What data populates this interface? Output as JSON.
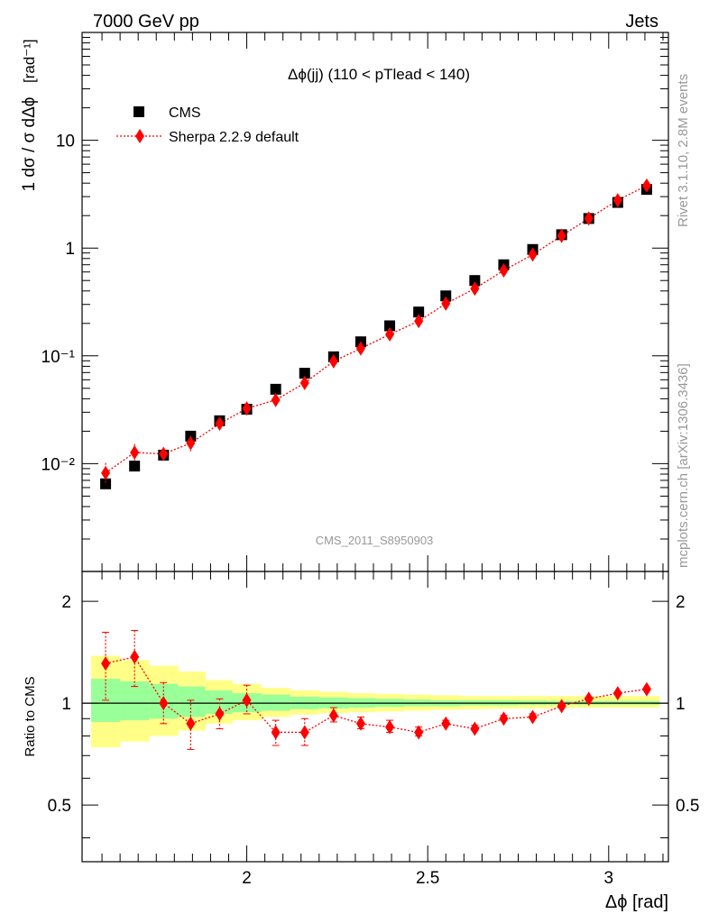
{
  "header": {
    "energy_label": "7000 GeV pp",
    "process_label": "Jets"
  },
  "side_labels": {
    "rivet": "Rivet 3.1.10,  2.8M events",
    "mcplots": "mcplots.cern.ch [arXiv:1306.3436]"
  },
  "chart_data": [
    {
      "type": "scatter",
      "title": "Δϕ(jj) (110 < pTlead <  140)",
      "watermark": "CMS_2011_S8950903",
      "xlabel": "Δϕ [rad]",
      "ylabel_main": "1 dσ / σ dΔϕ",
      "ylabel_unit": "[rad⁻¹]",
      "yscale": "log",
      "xlim": [
        1.545,
        3.165
      ],
      "ylim": [
        0.001,
        100
      ],
      "ytick_labels": [
        "10⁻²",
        "10⁻¹",
        "1",
        "10"
      ],
      "ytick_values": [
        0.01,
        0.1,
        1,
        10
      ],
      "legend_placement": "top-left",
      "x": [
        1.61,
        1.69,
        1.77,
        1.845,
        1.925,
        2.0,
        2.08,
        2.16,
        2.24,
        2.315,
        2.395,
        2.475,
        2.55,
        2.63,
        2.71,
        2.79,
        2.87,
        2.945,
        3.025,
        3.105
      ],
      "series": [
        {
          "name": "CMS",
          "color": "#000000",
          "marker": "square",
          "values": [
            0.0065,
            0.0095,
            0.012,
            0.018,
            0.025,
            0.032,
            0.049,
            0.069,
            0.098,
            0.135,
            0.19,
            0.255,
            0.36,
            0.5,
            0.7,
            0.97,
            1.33,
            1.88,
            2.65,
            3.5
          ]
        },
        {
          "name": "Sherpa 2.2.9 default",
          "color": "#ff0000",
          "marker": "diamond",
          "line": "dotted",
          "values": [
            0.0082,
            0.0127,
            0.0123,
            0.0155,
            0.0235,
            0.0325,
            0.039,
            0.056,
            0.089,
            0.117,
            0.158,
            0.21,
            0.305,
            0.42,
            0.62,
            0.87,
            1.3,
            1.88,
            2.78,
            3.8
          ]
        }
      ]
    },
    {
      "type": "scatter",
      "ylabel": "Ratio to CMS",
      "xlabel": "Δϕ [rad]",
      "yscale": "log",
      "xlim": [
        1.545,
        3.165
      ],
      "ylim": [
        0.34,
        2.45
      ],
      "ytick_labels": [
        "0.5",
        "1",
        "2"
      ],
      "ytick_values": [
        0.5,
        1,
        2
      ],
      "xtick_labels": [
        "2",
        "2.5",
        "3"
      ],
      "xtick_values": [
        2,
        2.5,
        3
      ],
      "x": [
        1.61,
        1.69,
        1.77,
        1.845,
        1.925,
        2.0,
        2.08,
        2.16,
        2.24,
        2.315,
        2.395,
        2.475,
        2.55,
        2.63,
        2.71,
        2.79,
        2.87,
        2.945,
        3.025,
        3.105
      ],
      "ratio": [
        1.31,
        1.37,
        1.0,
        0.87,
        0.93,
        1.02,
        0.82,
        0.82,
        0.92,
        0.87,
        0.85,
        0.82,
        0.87,
        0.84,
        0.9,
        0.91,
        0.98,
        1.03,
        1.07,
        1.1
      ],
      "ratio_err_low": [
        1.02,
        1.12,
        0.87,
        0.73,
        0.84,
        0.93,
        0.75,
        0.75,
        0.88,
        0.84,
        0.82,
        0.8,
        0.86,
        0.83,
        0.89,
        0.9,
        0.97,
        1.02,
        1.06,
        1.09
      ],
      "ratio_err_high": [
        1.62,
        1.64,
        1.15,
        1.02,
        1.03,
        1.13,
        0.89,
        0.9,
        0.97,
        0.91,
        0.89,
        0.85,
        0.89,
        0.86,
        0.92,
        0.93,
        0.99,
        1.04,
        1.08,
        1.11
      ],
      "band_edges": [
        1.57,
        1.65,
        1.73,
        1.81,
        1.885,
        1.96,
        2.04,
        2.12,
        2.2,
        2.28,
        2.355,
        2.435,
        2.51,
        2.59,
        2.67,
        2.75,
        2.83,
        2.905,
        2.985,
        3.065,
        3.14
      ],
      "stat_band_low": [
        0.88,
        0.89,
        0.9,
        0.91,
        0.93,
        0.94,
        0.95,
        0.96,
        0.965,
        0.97,
        0.975,
        0.98,
        0.98,
        0.985,
        0.985,
        0.988,
        0.99,
        0.99,
        0.99,
        0.99
      ],
      "stat_band_high": [
        1.18,
        1.16,
        1.14,
        1.12,
        1.09,
        1.07,
        1.06,
        1.045,
        1.04,
        1.035,
        1.03,
        1.025,
        1.02,
        1.02,
        1.02,
        1.018,
        1.015,
        1.015,
        1.015,
        1.015
      ],
      "total_band_low": [
        0.74,
        0.77,
        0.8,
        0.83,
        0.87,
        0.89,
        0.91,
        0.925,
        0.935,
        0.94,
        0.945,
        0.95,
        0.955,
        0.96,
        0.963,
        0.965,
        0.968,
        0.97,
        0.97,
        0.97
      ],
      "total_band_high": [
        1.38,
        1.34,
        1.29,
        1.24,
        1.17,
        1.14,
        1.11,
        1.09,
        1.08,
        1.07,
        1.065,
        1.06,
        1.055,
        1.05,
        1.05,
        1.05,
        1.05,
        1.05,
        1.05,
        1.05
      ],
      "stat_band_color": "#99ff99",
      "total_band_color": "#ffff88"
    }
  ]
}
